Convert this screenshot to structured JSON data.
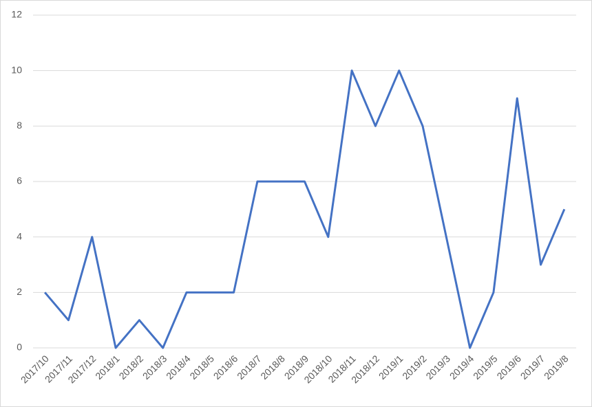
{
  "chart_data": {
    "type": "line",
    "categories": [
      "2017/10",
      "2017/11",
      "2017/12",
      "2018/1",
      "2018/2",
      "2018/3",
      "2018/4",
      "2018/5",
      "2018/6",
      "2018/7",
      "2018/8",
      "2018/9",
      "2018/10",
      "2018/11",
      "2018/12",
      "2019/1",
      "2019/2",
      "2019/3",
      "2019/4",
      "2019/5",
      "2019/6",
      "2019/7",
      "2019/8"
    ],
    "series": [
      {
        "color": "#4472c4",
        "values": [
          2,
          1,
          4,
          0,
          1,
          0,
          2,
          2,
          2,
          6,
          6,
          6,
          4,
          10,
          8,
          10,
          8,
          4,
          0,
          2,
          9,
          3,
          5
        ]
      }
    ],
    "ylim": [
      0,
      12
    ],
    "yticks": [
      0,
      2,
      4,
      6,
      8,
      10,
      12
    ],
    "grid": true
  }
}
